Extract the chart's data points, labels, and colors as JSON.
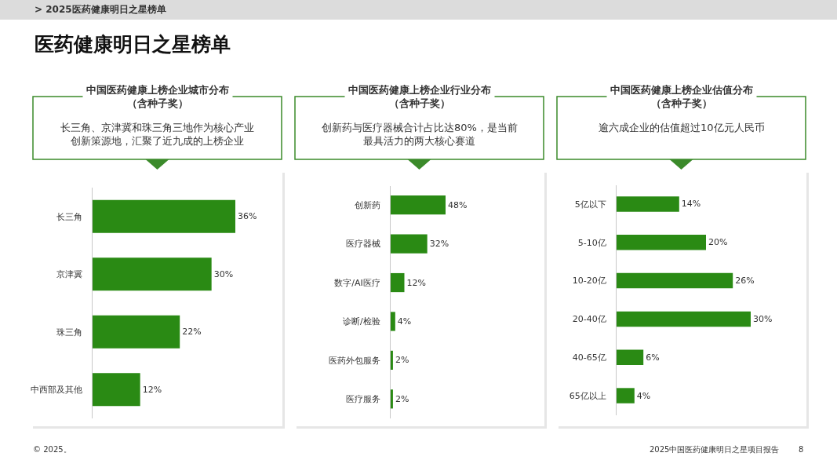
{
  "chart_data": [
    {
      "type": "other",
      "title": "医药健康明日之星榜单",
      "annotations": [
        "> 2025医药健康明日之星榜单",
        "© 2025。",
        "2025中国医药健康明日之星项目报告",
        "8"
      ]
    },
    {
      "type": "bar",
      "orientation": "horizontal",
      "title": "中国医药健康上榜企业城市分布（含种子奖）",
      "subtitle": "长三角、京津冀和珠三角三地作为核心产业创新策源地，汇聚了近九成的上榜企业",
      "categories": [
        "长三角",
        "京津冀",
        "珠三角",
        "中西部及其他"
      ],
      "values": [
        36,
        30,
        22,
        12
      ],
      "value_labels": [
        "36%",
        "30%",
        "22%",
        "12%"
      ],
      "color": "#2a8a14",
      "tick_labels": "y"
    },
    {
      "type": "bar",
      "orientation": "horizontal",
      "title": "中国医药健康上榜企业行业分布（含种子奖）",
      "subtitle": "创新药与医疗器械合计占比达80%，是当前最具活力的两大核心赛道",
      "categories": [
        "创新药",
        "医疗器械",
        "数字/AI医疗",
        "诊断/检验",
        "医药外包服务",
        "医疗服务"
      ],
      "values": [
        48,
        32,
        12,
        4,
        2,
        2
      ],
      "value_labels": [
        "48%",
        "32%",
        "12%",
        "4%",
        "2%",
        "2%"
      ],
      "color": "#2a8a14",
      "tick_labels": "y"
    },
    {
      "type": "bar",
      "orientation": "horizontal",
      "title": "中国医药健康上榜企业估值分布（含种子奖）",
      "subtitle": "逾六成企业的估值超过10亿元人民币",
      "categories": [
        "5亿以下",
        "5-10亿",
        "10-20亿",
        "20-40亿",
        "40-65亿",
        "65亿以上"
      ],
      "values": [
        14,
        20,
        26,
        30,
        6,
        4
      ],
      "value_labels": [
        "14%",
        "20%",
        "26%",
        "30%",
        "6%",
        "4%"
      ],
      "color": "#2a8a14",
      "tick_labels": "y"
    }
  ]
}
